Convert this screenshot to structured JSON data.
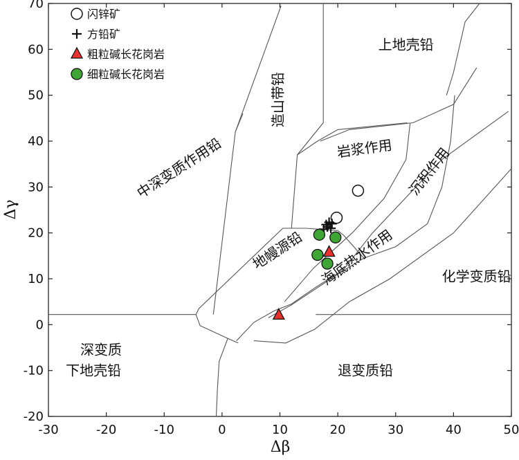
{
  "chart_data": {
    "type": "scatter",
    "xlabel": "Δβ",
    "ylabel": "Δγ",
    "xlim": [
      -30,
      50
    ],
    "ylim": [
      -20,
      70
    ],
    "xticks": [
      "-30",
      "-20",
      "-10",
      "0",
      "10",
      "20",
      "30",
      "40",
      "50"
    ],
    "yticks": [
      "70",
      "60",
      "50",
      "40",
      "30",
      "20",
      "10",
      "0",
      "-10",
      "-20"
    ],
    "legend": {
      "placement": "top-left",
      "entries": [
        {
          "label": "闪锌矿",
          "marker": "circle-open"
        },
        {
          "label": "方铅矿",
          "marker": "plus"
        },
        {
          "label": "粗粒碱长花岗岩",
          "marker": "triangle-red"
        },
        {
          "label": "细粒碱长花岗岩",
          "marker": "circle-green"
        }
      ]
    },
    "regions": {
      "upper_crust": "上地壳铅",
      "orogen": "造山带铅",
      "magmatic": "岩浆作用",
      "sedimentary": "沉积作用",
      "mid_deep_meta": "中深变质作用铅",
      "mantle": "地幔源铅",
      "seafloor_hydro": "海底热水作用",
      "chem_meta": "化学变质铅",
      "deep_meta_lower_1": "深变质",
      "deep_meta_lower_2": "下地壳铅",
      "retro_meta": "退变质铅"
    },
    "series": [
      {
        "name": "闪锌矿",
        "points": [
          [
            23.5,
            29.2
          ],
          [
            19.8,
            23.3
          ]
        ]
      },
      {
        "name": "方铅矿",
        "points": [
          [
            18.0,
            21.8
          ],
          [
            18.5,
            22.3
          ],
          [
            19.0,
            22.0
          ],
          [
            18.2,
            21.3
          ],
          [
            17.6,
            20.8
          ],
          [
            18.8,
            21.0
          ]
        ]
      },
      {
        "name": "粗粒碱长花岗岩",
        "points": [
          [
            18.5,
            15.8
          ],
          [
            9.8,
            2.1
          ]
        ]
      },
      {
        "name": "细粒碱长花岗岩",
        "points": [
          [
            16.8,
            19.6
          ],
          [
            19.6,
            19.0
          ],
          [
            16.5,
            15.2
          ],
          [
            18.2,
            13.3
          ]
        ]
      }
    ],
    "colors": {
      "triangle": "#e8322e",
      "green": "#3fa535",
      "axis": "#222222",
      "boundary": "#555555"
    }
  }
}
